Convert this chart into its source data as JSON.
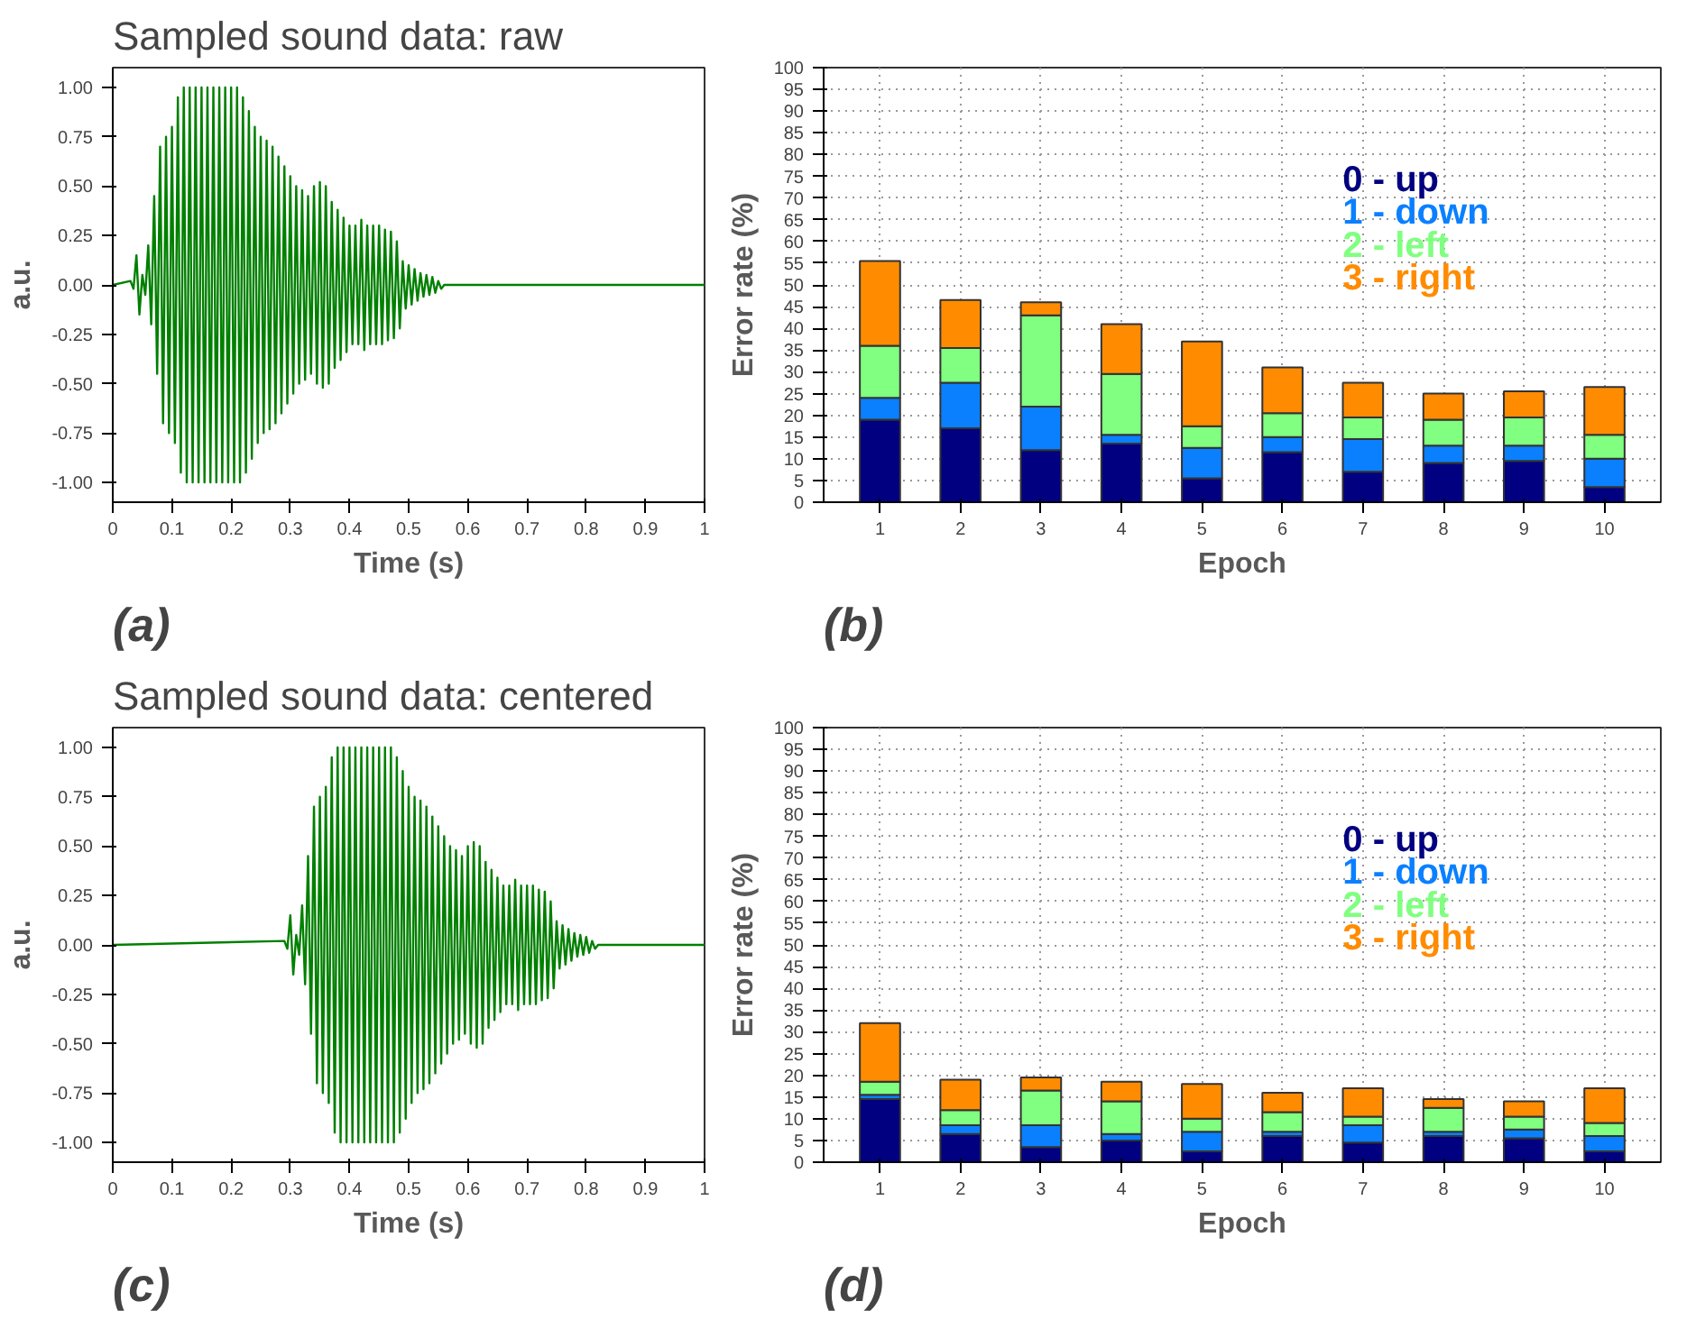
{
  "chart_data": [
    {
      "type": "line",
      "title": "Sampled sound data: raw",
      "xlabel": "Time (s)",
      "ylabel": "a.u.",
      "annotations": [
        "(a)"
      ],
      "xlim": [
        0,
        1
      ],
      "ylim": [
        -1.1,
        1.1
      ],
      "xticks": [
        0,
        0.1,
        0.2,
        0.3,
        0.4,
        0.5,
        0.6,
        0.7,
        0.8,
        0.9,
        1
      ],
      "yticks": [
        {
          "value": -1,
          "label": "-1.00"
        },
        {
          "value": -0.75,
          "label": "-0.75"
        },
        {
          "value": -0.5,
          "label": "-0.50"
        },
        {
          "value": -0.25,
          "label": "-0.25"
        },
        {
          "value": 0,
          "label": "0.00"
        },
        {
          "value": 0.25,
          "label": "0.25"
        },
        {
          "value": 0.5,
          "label": "0.50"
        },
        {
          "value": 0.75,
          "label": "0.75"
        },
        {
          "value": 1,
          "label": "1.00"
        }
      ],
      "series": [
        {
          "color": "#008000",
          "x": [
            0,
            0.03,
            0.035,
            0.04,
            0.045,
            0.05,
            0.055,
            0.06,
            0.065,
            0.07,
            0.075,
            0.08,
            0.085,
            0.09,
            0.095,
            0.1,
            0.105,
            0.11,
            0.115,
            0.12,
            0.125,
            0.13,
            0.135,
            0.14,
            0.145,
            0.15,
            0.155,
            0.16,
            0.165,
            0.17,
            0.175,
            0.18,
            0.185,
            0.19,
            0.195,
            0.2,
            0.205,
            0.21,
            0.215,
            0.22,
            0.225,
            0.23,
            0.235,
            0.24,
            0.245,
            0.25,
            0.255,
            0.26,
            0.265,
            0.27,
            0.275,
            0.28,
            0.285,
            0.29,
            0.295,
            0.3,
            0.305,
            0.31,
            0.315,
            0.32,
            0.325,
            0.33,
            0.335,
            0.34,
            0.345,
            0.35,
            0.355,
            0.36,
            0.365,
            0.37,
            0.375,
            0.38,
            0.385,
            0.39,
            0.395,
            0.4,
            0.405,
            0.41,
            0.415,
            0.42,
            0.425,
            0.43,
            0.435,
            0.44,
            0.445,
            0.45,
            0.455,
            0.46,
            0.465,
            0.47,
            0.475,
            0.48,
            0.485,
            0.49,
            0.495,
            0.5,
            0.505,
            0.51,
            0.515,
            0.52,
            0.525,
            0.53,
            0.535,
            0.54,
            0.545,
            0.55,
            0.555,
            0.56,
            0.565,
            1
          ],
          "values": [
            0,
            0.02,
            -0.02,
            0.15,
            -0.15,
            0.05,
            -0.05,
            0.2,
            -0.2,
            0.45,
            -0.45,
            0.7,
            -0.7,
            0.75,
            -0.75,
            0.8,
            -0.8,
            0.95,
            -0.95,
            1,
            -1,
            1,
            -1,
            1,
            -1,
            1,
            -1,
            1,
            -1,
            1,
            -1,
            1,
            -1,
            1,
            -1,
            1,
            -1,
            1,
            -1,
            0.95,
            -0.95,
            0.88,
            -0.88,
            0.8,
            -0.8,
            0.75,
            -0.75,
            0.73,
            -0.73,
            0.7,
            -0.7,
            0.65,
            -0.65,
            0.6,
            -0.6,
            0.55,
            -0.55,
            0.5,
            -0.5,
            0.48,
            -0.48,
            0.45,
            -0.45,
            0.5,
            -0.5,
            0.52,
            -0.52,
            0.5,
            -0.5,
            0.42,
            -0.42,
            0.38,
            -0.38,
            0.34,
            -0.34,
            0.3,
            -0.3,
            0.3,
            -0.3,
            0.33,
            -0.33,
            0.3,
            -0.3,
            0.3,
            -0.3,
            0.3,
            -0.3,
            0.28,
            -0.28,
            0.27,
            -0.27,
            0.22,
            -0.22,
            0.12,
            -0.12,
            0.1,
            -0.1,
            0.08,
            -0.08,
            0.06,
            -0.06,
            0.05,
            -0.05,
            0.04,
            -0.04,
            0.02,
            -0.02,
            0,
            0,
            0
          ]
        }
      ]
    },
    {
      "type": "bar",
      "stacked": true,
      "xlabel": "Epoch",
      "ylabel": "Error rate (%)",
      "annotations": [
        "(b)"
      ],
      "categories": [
        "1",
        "2",
        "3",
        "4",
        "5",
        "6",
        "7",
        "8",
        "9",
        "10"
      ],
      "ylim": [
        0,
        100
      ],
      "yticks": [
        0,
        5,
        10,
        15,
        20,
        25,
        30,
        35,
        40,
        45,
        50,
        55,
        60,
        65,
        70,
        75,
        80,
        85,
        90,
        95,
        100
      ],
      "grid": true,
      "legend": "top right",
      "series": [
        {
          "name": "0 - up",
          "color": "#000080",
          "values": [
            19,
            17,
            12,
            13.5,
            5.5,
            11.5,
            7,
            9,
            9.5,
            3.5
          ]
        },
        {
          "name": "1 - down",
          "color": "#0a80ff",
          "values": [
            5,
            10.5,
            10,
            2,
            7,
            3.5,
            7.5,
            4,
            3.5,
            6.5
          ]
        },
        {
          "name": "2 - left",
          "color": "#80ff80",
          "values": [
            12,
            8,
            21,
            14,
            5,
            5.5,
            5,
            6,
            6.5,
            5.5
          ]
        },
        {
          "name": "3 - right",
          "color": "#ff8c00",
          "values": [
            19.5,
            11,
            3,
            11.5,
            19.5,
            10.5,
            8,
            6,
            6,
            11
          ]
        }
      ]
    },
    {
      "type": "line",
      "title": "Sampled sound data: centered",
      "xlabel": "Time (s)",
      "ylabel": "a.u.",
      "annotations": [
        "(c)"
      ],
      "xlim": [
        0,
        1
      ],
      "ylim": [
        -1.1,
        1.1
      ],
      "xticks": [
        0,
        0.1,
        0.2,
        0.3,
        0.4,
        0.5,
        0.6,
        0.7,
        0.8,
        0.9,
        1
      ],
      "yticks": [
        {
          "value": -1,
          "label": "-1.00"
        },
        {
          "value": -0.75,
          "label": "-0.75"
        },
        {
          "value": -0.5,
          "label": "-0.50"
        },
        {
          "value": -0.25,
          "label": "-0.25"
        },
        {
          "value": 0,
          "label": "0.00"
        },
        {
          "value": 0.25,
          "label": "0.25"
        },
        {
          "value": 0.5,
          "label": "0.50"
        },
        {
          "value": 0.75,
          "label": "0.75"
        },
        {
          "value": 1,
          "label": "1.00"
        }
      ],
      "series": [
        {
          "color": "#008000",
          "x": [
            0,
            0.29,
            0.295,
            0.3,
            0.305,
            0.31,
            0.315,
            0.32,
            0.325,
            0.33,
            0.335,
            0.34,
            0.345,
            0.35,
            0.355,
            0.36,
            0.365,
            0.37,
            0.375,
            0.38,
            0.385,
            0.39,
            0.395,
            0.4,
            0.405,
            0.41,
            0.415,
            0.42,
            0.425,
            0.43,
            0.435,
            0.44,
            0.445,
            0.45,
            0.455,
            0.46,
            0.465,
            0.47,
            0.475,
            0.48,
            0.485,
            0.49,
            0.495,
            0.5,
            0.505,
            0.51,
            0.515,
            0.52,
            0.525,
            0.53,
            0.535,
            0.54,
            0.545,
            0.55,
            0.555,
            0.56,
            0.565,
            0.57,
            0.575,
            0.58,
            0.585,
            0.59,
            0.595,
            0.6,
            0.605,
            0.61,
            0.615,
            0.62,
            0.625,
            0.63,
            0.635,
            0.64,
            0.645,
            0.65,
            0.655,
            0.66,
            0.665,
            0.67,
            0.675,
            0.68,
            0.685,
            0.69,
            0.695,
            0.7,
            0.705,
            0.71,
            0.715,
            0.72,
            0.725,
            0.73,
            0.735,
            0.74,
            0.745,
            0.75,
            0.755,
            0.76,
            0.765,
            0.77,
            0.775,
            0.78,
            0.785,
            0.79,
            0.795,
            0.8,
            0.805,
            0.81,
            0.815,
            0.82,
            0.825,
            1
          ],
          "values": [
            0,
            0.02,
            -0.02,
            0.15,
            -0.15,
            0.05,
            -0.05,
            0.2,
            -0.2,
            0.45,
            -0.45,
            0.7,
            -0.7,
            0.75,
            -0.75,
            0.8,
            -0.8,
            0.95,
            -0.95,
            1,
            -1,
            1,
            -1,
            1,
            -1,
            1,
            -1,
            1,
            -1,
            1,
            -1,
            1,
            -1,
            1,
            -1,
            1,
            -1,
            1,
            -1,
            0.95,
            -0.95,
            0.88,
            -0.88,
            0.8,
            -0.8,
            0.75,
            -0.75,
            0.73,
            -0.73,
            0.7,
            -0.7,
            0.65,
            -0.65,
            0.6,
            -0.6,
            0.55,
            -0.55,
            0.5,
            -0.5,
            0.48,
            -0.48,
            0.45,
            -0.45,
            0.5,
            -0.5,
            0.52,
            -0.52,
            0.5,
            -0.5,
            0.42,
            -0.42,
            0.38,
            -0.38,
            0.34,
            -0.34,
            0.3,
            -0.3,
            0.3,
            -0.3,
            0.33,
            -0.33,
            0.3,
            -0.3,
            0.3,
            -0.3,
            0.3,
            -0.3,
            0.28,
            -0.28,
            0.27,
            -0.27,
            0.22,
            -0.22,
            0.12,
            -0.12,
            0.1,
            -0.1,
            0.08,
            -0.08,
            0.06,
            -0.06,
            0.05,
            -0.05,
            0.04,
            -0.04,
            0.02,
            -0.02,
            0,
            0,
            0
          ]
        }
      ]
    },
    {
      "type": "bar",
      "stacked": true,
      "xlabel": "Epoch",
      "ylabel": "Error rate (%)",
      "annotations": [
        "(d)"
      ],
      "categories": [
        "1",
        "2",
        "3",
        "4",
        "5",
        "6",
        "7",
        "8",
        "9",
        "10"
      ],
      "ylim": [
        0,
        100
      ],
      "yticks": [
        0,
        5,
        10,
        15,
        20,
        25,
        30,
        35,
        40,
        45,
        50,
        55,
        60,
        65,
        70,
        75,
        80,
        85,
        90,
        95,
        100
      ],
      "grid": true,
      "legend": "top right",
      "series": [
        {
          "name": "0 - up",
          "color": "#000080",
          "values": [
            14.5,
            6.5,
            3.5,
            5,
            2.5,
            6,
            4.5,
            6,
            5.5,
            2.5
          ]
        },
        {
          "name": "1 - down",
          "color": "#0a80ff",
          "values": [
            1,
            2,
            5,
            1.5,
            4.5,
            1,
            4,
            1,
            2,
            3.5
          ]
        },
        {
          "name": "2 - left",
          "color": "#80ff80",
          "values": [
            3,
            3.5,
            8,
            7.5,
            3,
            4.5,
            2,
            5.5,
            3,
            3
          ]
        },
        {
          "name": "3 - right",
          "color": "#ff8c00",
          "values": [
            13.5,
            7,
            3,
            4.5,
            8,
            4.5,
            6.5,
            2,
            3.5,
            8
          ]
        }
      ]
    }
  ]
}
